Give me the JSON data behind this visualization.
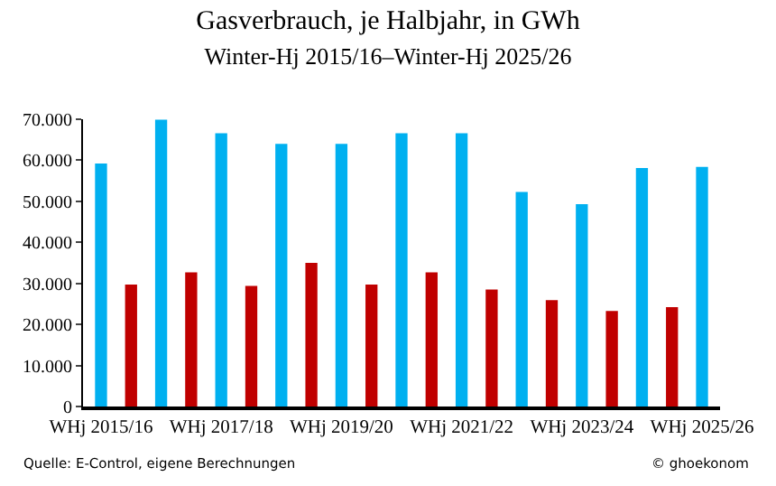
{
  "chart_data": {
    "type": "bar",
    "title": "Gasverbrauch, je Halbjahr, in GWh",
    "subtitle": "Winter-Hj 2015/16–Winter-Hj 2025/26",
    "categories": [
      "WHj 2015/16",
      null,
      null,
      null,
      "WHj 2017/18",
      null,
      null,
      null,
      "WHj 2019/20",
      null,
      null,
      null,
      "WHj 2021/22",
      null,
      null,
      null,
      "WHj 2023/24",
      null,
      null,
      null,
      "WHj 2025/26"
    ],
    "values": [
      59200,
      29700,
      69900,
      32700,
      66600,
      29400,
      64000,
      35000,
      64000,
      29700,
      66600,
      32700,
      66600,
      28500,
      52300,
      25900,
      49300,
      23300,
      58100,
      24200,
      58400
    ],
    "colors": [
      "#00b0f0",
      "#c00000",
      "#00b0f0",
      "#c00000",
      "#00b0f0",
      "#c00000",
      "#00b0f0",
      "#c00000",
      "#00b0f0",
      "#c00000",
      "#00b0f0",
      "#c00000",
      "#00b0f0",
      "#c00000",
      "#00b0f0",
      "#c00000",
      "#00b0f0",
      "#c00000",
      "#00b0f0",
      "#c00000",
      "#00b0f0"
    ],
    "ylim": [
      0,
      70000
    ],
    "yticks": [
      {
        "value": 0,
        "label": "0"
      },
      {
        "value": 10000,
        "label": "10.000"
      },
      {
        "value": 20000,
        "label": "20.000"
      },
      {
        "value": 30000,
        "label": "30.000"
      },
      {
        "value": 40000,
        "label": "40.000"
      },
      {
        "value": 50000,
        "label": "50.000"
      },
      {
        "value": 60000,
        "label": "60.000"
      },
      {
        "value": 70000,
        "label": "70.000"
      }
    ],
    "legend": false,
    "annotations": [
      "Quelle: E-Control, eigene Berechnungen",
      "© ghoekonom"
    ]
  }
}
